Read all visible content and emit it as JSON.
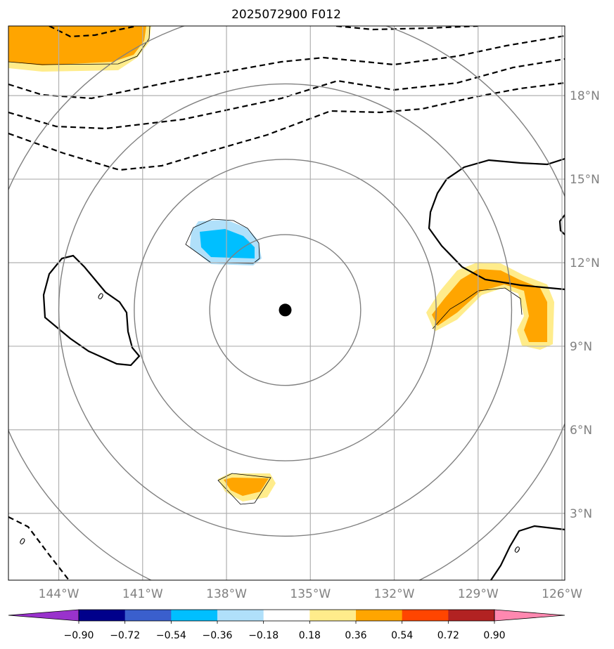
{
  "title": "2025072900 F012",
  "map": {
    "lon_range": [
      -145.8,
      -125.9
    ],
    "lat_range": [
      0.6,
      20.5
    ],
    "lon_ticks": [
      {
        "value": -144,
        "label": "144°W"
      },
      {
        "value": -141,
        "label": "141°W"
      },
      {
        "value": -138,
        "label": "138°W"
      },
      {
        "value": -135,
        "label": "135°W"
      },
      {
        "value": -132,
        "label": "132°W"
      },
      {
        "value": -129,
        "label": "129°W"
      },
      {
        "value": -126,
        "label": "126°W"
      }
    ],
    "lat_ticks": [
      {
        "value": 3,
        "label": "3°N"
      },
      {
        "value": 6,
        "label": "6°N"
      },
      {
        "value": 9,
        "label": "9°N"
      },
      {
        "value": 12,
        "label": "12°N"
      },
      {
        "value": 15,
        "label": "15°N"
      },
      {
        "value": 18,
        "label": "18°N"
      }
    ],
    "center": {
      "lon": -135.9,
      "lat": 10.3
    },
    "range_ring_radii_deg": [
      2.7,
      5.4,
      8.1,
      10.8
    ],
    "contour_labels": [
      {
        "text": "0",
        "lon": -142.5,
        "lat": 10.8
      },
      {
        "text": "0",
        "lon": -145.3,
        "lat": 2.0
      },
      {
        "text": "0",
        "lon": -127.6,
        "lat": 1.7
      }
    ]
  },
  "colorbar": {
    "tick_labels": [
      "−0.90",
      "−0.72",
      "−0.54",
      "−0.36",
      "−0.18",
      "0.18",
      "0.36",
      "0.54",
      "0.72",
      "0.90"
    ],
    "extend_low_color": "#9932cc",
    "extend_high_color": "#ff88b0",
    "colors": [
      "#00008b",
      "#3a5fcd",
      "#00bfff",
      "#b0e0fa",
      "#ffffff",
      "#ffec8b",
      "#ffa500",
      "#ff4500",
      "#b22222"
    ]
  },
  "colors": {
    "positive_light": "#ffec8b",
    "positive_mid": "#ffa500",
    "negative_mid": "#00bfff",
    "negative_light": "#b0e0fa",
    "grid": "#b0b0b0",
    "rings": "#808080",
    "tick_text": "#808080"
  }
}
